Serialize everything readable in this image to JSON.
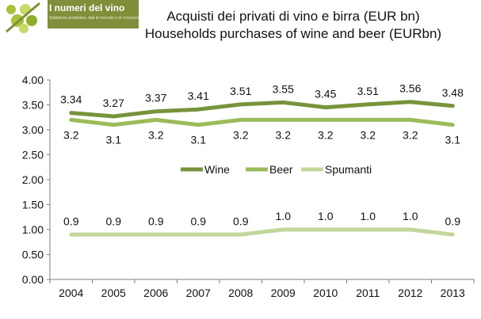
{
  "logo": {
    "title": "I numeri del vino",
    "subtitle": "Statistiche produttive, dati di mercato e di consumo"
  },
  "colors": {
    "wine": "#77933c",
    "beer": "#9bbb59",
    "spumanti": "#c3d69b",
    "axis": "#7f7f7f",
    "logo_bg": "#7f8f3a"
  },
  "chart_data": {
    "type": "line",
    "title": "Acquisti dei privati di vino e birra (EUR bn)",
    "subtitle": "Households purchases of wine and beer (EURbn)",
    "xlabel": "",
    "ylabel": "",
    "categories": [
      "2004",
      "2005",
      "2006",
      "2007",
      "2008",
      "2009",
      "2010",
      "2011",
      "2012",
      "2013"
    ],
    "ylim": [
      0,
      4
    ],
    "yticks": [
      "0.00",
      "0.50",
      "1.00",
      "1.50",
      "2.00",
      "2.50",
      "3.00",
      "3.50",
      "4.00"
    ],
    "grid": false,
    "legend_position": "center",
    "series": [
      {
        "name": "Wine",
        "color": "#77933c",
        "values": [
          3.34,
          3.27,
          3.37,
          3.41,
          3.51,
          3.55,
          3.45,
          3.51,
          3.56,
          3.48
        ],
        "labels": [
          "3.34",
          "3.27",
          "3.37",
          "3.41",
          "3.51",
          "3.55",
          "3.45",
          "3.51",
          "3.56",
          "3.48"
        ],
        "label_side": "above"
      },
      {
        "name": "Beer",
        "color": "#9bbb59",
        "values": [
          3.2,
          3.1,
          3.2,
          3.1,
          3.2,
          3.2,
          3.2,
          3.2,
          3.2,
          3.1
        ],
        "labels": [
          "3.2",
          "3.1",
          "3.2",
          "3.1",
          "3.2",
          "3.2",
          "3.2",
          "3.2",
          "3.2",
          "3.1"
        ],
        "label_side": "below"
      },
      {
        "name": "Spumanti",
        "color": "#c3d69b",
        "values": [
          0.9,
          0.9,
          0.9,
          0.9,
          0.9,
          1.0,
          1.0,
          1.0,
          1.0,
          0.9
        ],
        "labels": [
          "0.9",
          "0.9",
          "0.9",
          "0.9",
          "0.9",
          "1.0",
          "1.0",
          "1.0",
          "1.0",
          "0.9"
        ],
        "label_side": "above"
      }
    ]
  }
}
